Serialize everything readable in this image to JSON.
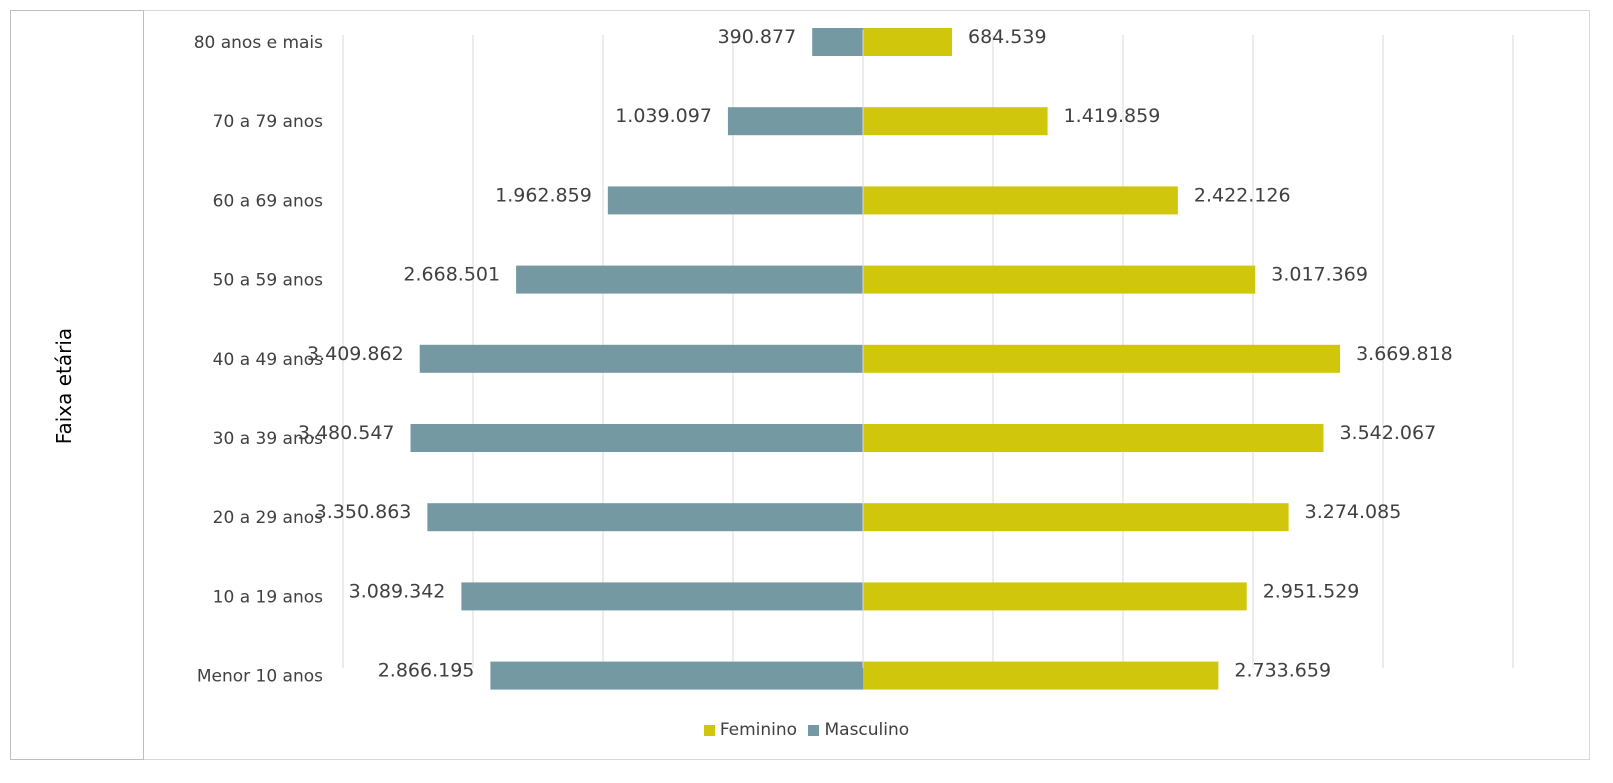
{
  "chart_data": {
    "type": "bar",
    "orientation": "horizontal",
    "layout": "population-pyramid",
    "ylabel": "Faixa etária",
    "categories": [
      "80 anos e mais",
      "70 a 79 anos",
      "60 a 69 anos",
      "50 a 59 anos",
      "40 a 49 anos",
      "30 a 39 anos",
      "20 a 29 anos",
      "10 a 19 anos",
      "Menor 10 anos"
    ],
    "series": [
      {
        "name": "Masculino",
        "color": "#7599a3",
        "side": "left",
        "values": [
          390877,
          1039097,
          1962859,
          2668501,
          3409862,
          3480547,
          3350863,
          3089342,
          2866195
        ],
        "labels": [
          "390.877",
          "1.039.097",
          "1.962.859",
          "2.668.501",
          "3.409.862",
          "3.480.547",
          "3.350.863",
          "3.089.342",
          "2.866.195"
        ]
      },
      {
        "name": "Feminino",
        "color": "#d0c60b",
        "side": "right",
        "values": [
          684539,
          1419859,
          2422126,
          3017369,
          3669818,
          3542067,
          3274085,
          2951529,
          2733659
        ],
        "labels": [
          "684.539",
          "1.419.859",
          "2.422.126",
          "3.017.369",
          "3.669.818",
          "3.542.067",
          "3.274.085",
          "2.951.529",
          "2.733.659"
        ]
      }
    ],
    "xlim": [
      -4000000,
      5000000
    ],
    "grid": true,
    "legend_position": "bottom",
    "legend": [
      "Feminino",
      "Masculino"
    ]
  }
}
